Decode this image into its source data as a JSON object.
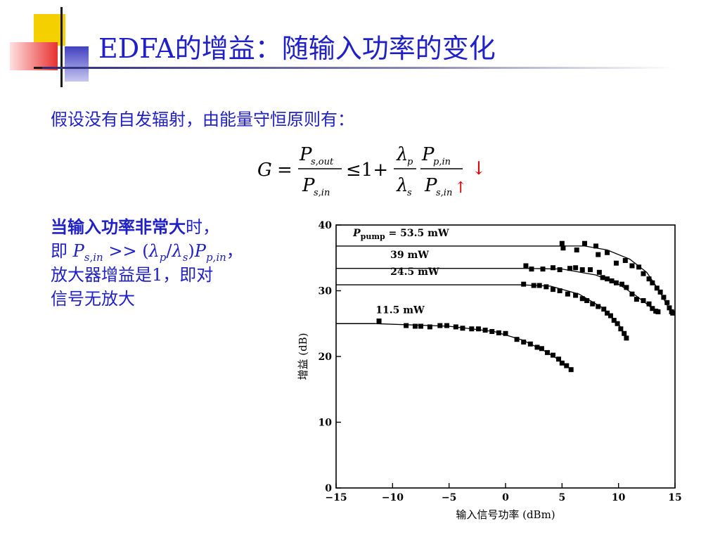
{
  "slide": {
    "title": "EDFA的增益：随输入功率的变化",
    "intro": "假设没有自发辐射，由能量守恒原则有：",
    "formula": {
      "lhs": "G",
      "eq": "=",
      "num1": "P",
      "num1_sub": "s,out",
      "den1": "P",
      "den1_sub": "s,in",
      "leq": "≤1+",
      "num2a": "λ",
      "num2a_sub": "p",
      "den2a": "λ",
      "den2a_sub": "s",
      "num2b": "P",
      "num2b_sub": "p,in",
      "den2b": "P",
      "den2b_sub": "s,in",
      "arrow_up": "↑",
      "arrow_down": "↓"
    },
    "side": {
      "l1_bold": "当输入功率非常大",
      "l1_rest": "时，",
      "l2_a": "即 ",
      "l2_P": "P",
      "l2_Psub": "s,in",
      "l2_gg": " >> (",
      "l2_lp": "λ",
      "l2_lpsub": "p",
      "l2_slash": "/",
      "l2_ls": "λ",
      "l2_lssub": "s",
      "l2_close": ")",
      "l2_P2": "P",
      "l2_P2sub": "p,in",
      "l2_end": "，",
      "l3": "放大器增益是1，即对",
      "l4": "信号无放大"
    },
    "colors": {
      "text": "#2020c8",
      "arrow": "#e00000",
      "deco_yellow": "#f5d000",
      "deco_red": "#e83030",
      "deco_blue": "#4040c0"
    }
  },
  "chart_data": {
    "type": "scatter",
    "xlabel": "输入信号功率 (dBm)",
    "ylabel": "增益 (dB)",
    "xlim": [
      -15,
      15
    ],
    "ylim": [
      0,
      40
    ],
    "xticks": [
      "−15",
      "−10",
      "−5",
      "0",
      "5",
      "10",
      "15"
    ],
    "yticks": [
      "0",
      "10",
      "20",
      "30",
      "40"
    ],
    "series": [
      {
        "name_parts": [
          "P",
          "pump",
          " = 53.5 mW"
        ],
        "flat": 36.8,
        "flat_to": 5.0,
        "curve": [
          [
            5,
            36.8
          ],
          [
            7,
            36.8
          ],
          [
            9,
            36.2
          ],
          [
            11,
            34.8
          ],
          [
            12.5,
            32.8
          ],
          [
            13.6,
            30
          ],
          [
            14.4,
            27.5
          ],
          [
            14.8,
            26.5
          ]
        ],
        "points": [
          [
            5,
            37.2
          ],
          [
            5.1,
            36.5
          ],
          [
            7,
            37.2
          ],
          [
            6.3,
            36.2
          ],
          [
            8,
            36.8
          ],
          [
            8.2,
            35.5
          ],
          [
            9,
            35.8
          ],
          [
            9.8,
            34.2
          ],
          [
            10.6,
            34.6
          ],
          [
            11.2,
            33.8
          ],
          [
            11.8,
            33.6
          ],
          [
            12.2,
            32.6
          ],
          [
            12.7,
            31.8
          ],
          [
            13,
            31.2
          ],
          [
            13.4,
            30.4
          ],
          [
            13.7,
            29.8
          ],
          [
            14,
            29
          ],
          [
            14.3,
            28.2
          ],
          [
            14.5,
            27.4
          ],
          [
            14.7,
            26.8
          ],
          [
            14.8,
            26.6
          ]
        ]
      },
      {
        "name": "39 mW",
        "flat": 33.4,
        "flat_to": 1.8,
        "curve": [
          [
            1.8,
            33.4
          ],
          [
            5,
            33.3
          ],
          [
            8,
            32.4
          ],
          [
            10,
            31
          ],
          [
            11.5,
            29.3
          ],
          [
            12.5,
            28
          ],
          [
            13.3,
            26.8
          ]
        ],
        "points": [
          [
            1.8,
            33.8
          ],
          [
            2.3,
            33.3
          ],
          [
            3.3,
            33.3
          ],
          [
            4.2,
            33.5
          ],
          [
            4.8,
            33.2
          ],
          [
            5.7,
            33.4
          ],
          [
            6.2,
            33.5
          ],
          [
            6.8,
            33.2
          ],
          [
            7.5,
            33.2
          ],
          [
            8.3,
            32.8
          ],
          [
            8.6,
            32
          ],
          [
            9,
            31.8
          ],
          [
            9.4,
            31.5
          ],
          [
            9.8,
            31.2
          ],
          [
            10.3,
            31
          ],
          [
            10.7,
            30.5
          ],
          [
            11.2,
            29.5
          ],
          [
            11.6,
            28.7
          ],
          [
            12.2,
            28.5
          ],
          [
            12.7,
            28
          ],
          [
            13,
            27.3
          ],
          [
            13.3,
            26.9
          ],
          [
            13.5,
            26.8
          ]
        ]
      },
      {
        "name": "24.5 mW",
        "flat": 30.9,
        "flat_to": 1.5,
        "curve": [
          [
            1.5,
            30.9
          ],
          [
            4,
            30.7
          ],
          [
            6.5,
            29.5
          ],
          [
            8.5,
            27.5
          ],
          [
            10,
            25
          ],
          [
            10.6,
            23
          ]
        ],
        "points": [
          [
            1.6,
            31
          ],
          [
            2.5,
            30.8
          ],
          [
            3,
            30.8
          ],
          [
            3.6,
            30.6
          ],
          [
            4.2,
            30.2
          ],
          [
            4.8,
            30
          ],
          [
            5.5,
            29.5
          ],
          [
            6.2,
            29.3
          ],
          [
            6.8,
            28.8
          ],
          [
            7.2,
            28.5
          ],
          [
            7.7,
            28
          ],
          [
            8.2,
            27.6
          ],
          [
            8.7,
            27.2
          ],
          [
            9,
            26.6
          ],
          [
            9.3,
            26.2
          ],
          [
            9.6,
            25.5
          ],
          [
            9.9,
            25
          ],
          [
            10.2,
            24.2
          ],
          [
            10.5,
            23.5
          ],
          [
            10.7,
            22.8
          ]
        ]
      },
      {
        "name": "11.5 mW",
        "flat": 25.0,
        "flat_to": -11.5,
        "curve": [
          [
            -11.5,
            25
          ],
          [
            -5,
            24.6
          ],
          [
            -1,
            23.8
          ],
          [
            1.5,
            22.5
          ],
          [
            3.5,
            20.8
          ],
          [
            5,
            19.2
          ],
          [
            5.8,
            18
          ]
        ],
        "points": [
          [
            -11.2,
            25.4
          ],
          [
            -8.8,
            24.7
          ],
          [
            -8,
            24.6
          ],
          [
            -7.5,
            24.6
          ],
          [
            -6.7,
            24.5
          ],
          [
            -5.8,
            24.7
          ],
          [
            -5.2,
            24.7
          ],
          [
            -4.4,
            24.5
          ],
          [
            -3.8,
            24.3
          ],
          [
            -3,
            24.2
          ],
          [
            -2.4,
            24.2
          ],
          [
            -1.8,
            24
          ],
          [
            -1.2,
            23.8
          ],
          [
            -0.6,
            23.6
          ],
          [
            0,
            23.5
          ],
          [
            1,
            22.6
          ],
          [
            1.6,
            22.2
          ],
          [
            2.2,
            21.9
          ],
          [
            2.8,
            21.4
          ],
          [
            3.2,
            21.2
          ],
          [
            3.7,
            20.6
          ],
          [
            4.2,
            20.2
          ],
          [
            4.7,
            19.6
          ],
          [
            5,
            19
          ],
          [
            5.4,
            18.6
          ],
          [
            5.8,
            18
          ]
        ]
      }
    ]
  }
}
